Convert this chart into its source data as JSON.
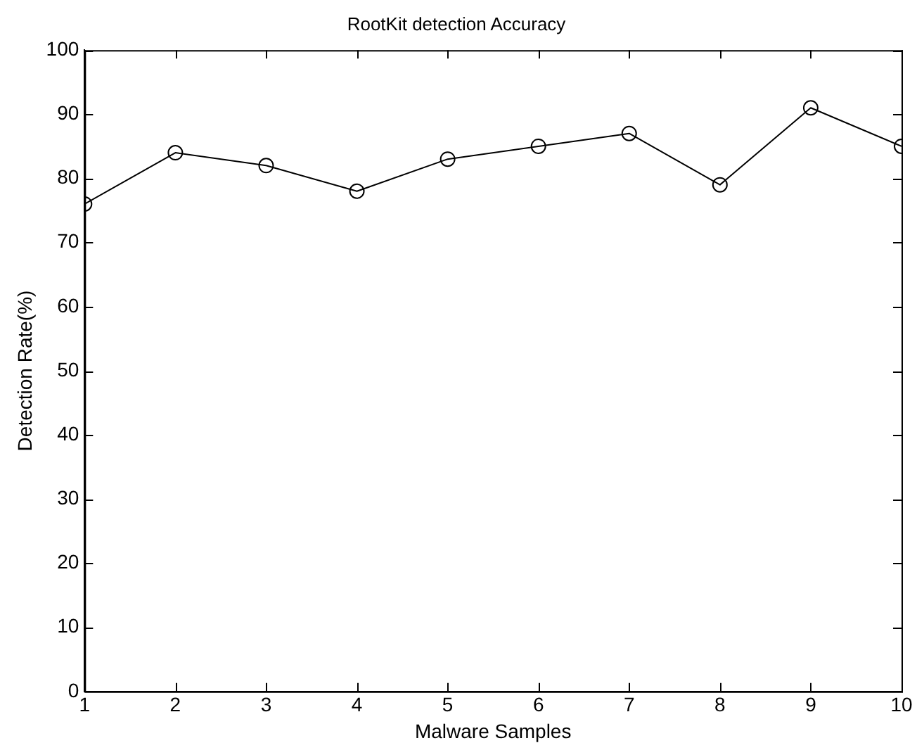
{
  "chart_data": {
    "type": "line",
    "title": "RootKit detection Accuracy",
    "xlabel": "Malware Samples",
    "ylabel": "Detection Rate(%)",
    "x": [
      1,
      2,
      3,
      4,
      5,
      6,
      7,
      8,
      9,
      10
    ],
    "series": [
      {
        "color": "#000000",
        "values": [
          76,
          84,
          82,
          78,
          83,
          85,
          87,
          79,
          91,
          85
        ]
      }
    ],
    "xlim": [
      1,
      10
    ],
    "xticks": [
      1,
      2,
      3,
      4,
      5,
      6,
      7,
      8,
      9,
      10
    ],
    "ylim": [
      0,
      100
    ],
    "yticks": [
      0,
      10,
      20,
      30,
      40,
      50,
      60,
      70,
      80,
      90,
      100
    ],
    "grid": false,
    "legend": false,
    "marker": "circle",
    "line_style": "solid"
  }
}
